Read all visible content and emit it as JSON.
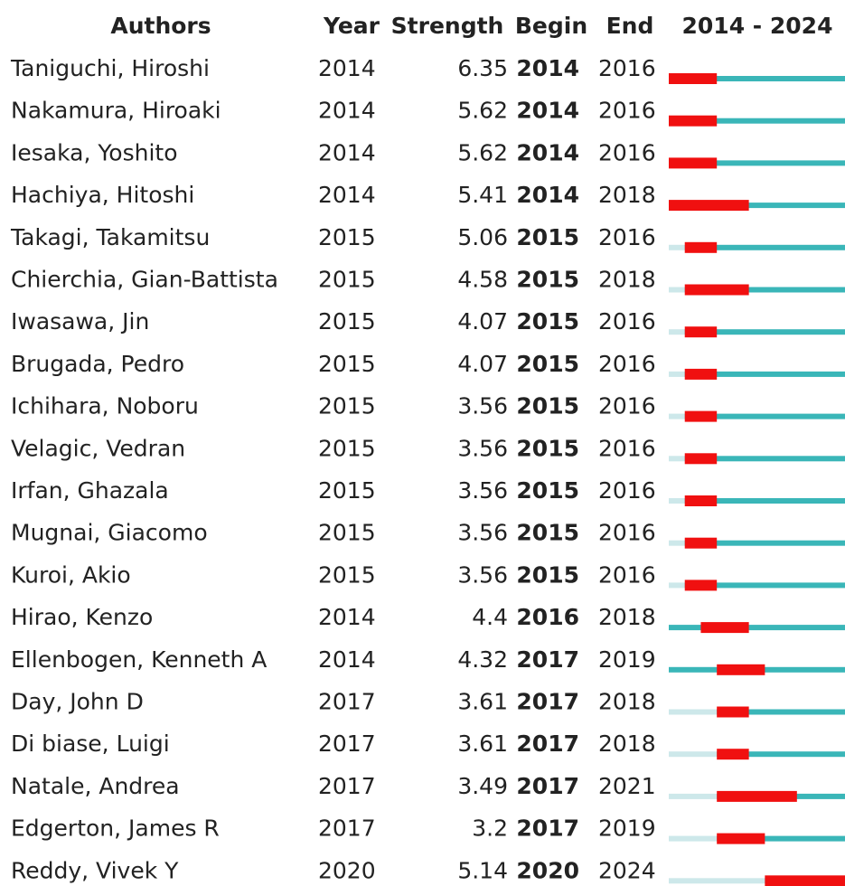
{
  "table": {
    "header": [
      "Authors",
      "Year",
      "Strength",
      "Begin",
      "End",
      "2014 - 2024"
    ],
    "timeline": {
      "start": 2014,
      "end": 2024
    },
    "rows": [
      [
        "Taniguchi, Hiroshi",
        2014,
        6.35,
        2014,
        2016
      ],
      [
        "Nakamura, Hiroaki",
        2014,
        5.62,
        2014,
        2016
      ],
      [
        "Iesaka, Yoshito",
        2014,
        5.62,
        2014,
        2016
      ],
      [
        "Hachiya, Hitoshi",
        2014,
        5.41,
        2014,
        2018
      ],
      [
        "Takagi, Takamitsu",
        2015,
        5.06,
        2015,
        2016
      ],
      [
        "Chierchia, Gian-Battista",
        2015,
        4.58,
        2015,
        2018
      ],
      [
        "Iwasawa, Jin",
        2015,
        4.07,
        2015,
        2016
      ],
      [
        "Brugada, Pedro",
        2015,
        4.07,
        2015,
        2016
      ],
      [
        "Ichihara, Noboru",
        2015,
        3.56,
        2015,
        2016
      ],
      [
        "Velagic, Vedran",
        2015,
        3.56,
        2015,
        2016
      ],
      [
        "Irfan, Ghazala",
        2015,
        3.56,
        2015,
        2016
      ],
      [
        "Mugnai, Giacomo",
        2015,
        3.56,
        2015,
        2016
      ],
      [
        "Kuroi, Akio",
        2015,
        3.56,
        2015,
        2016
      ],
      [
        "Hirao, Kenzo",
        2014,
        4.4,
        2016,
        2018
      ],
      [
        "Ellenbogen, Kenneth A",
        2014,
        4.32,
        2017,
        2019
      ],
      [
        "Day, John D",
        2017,
        3.61,
        2017,
        2018
      ],
      [
        "Di biase, Luigi",
        2017,
        3.61,
        2017,
        2018
      ],
      [
        "Natale, Andrea",
        2017,
        3.49,
        2017,
        2021
      ],
      [
        "Edgerton, James R",
        2017,
        3.2,
        2017,
        2019
      ],
      [
        "Reddy, Vivek Y",
        2020,
        5.14,
        2020,
        2024
      ]
    ]
  }
}
